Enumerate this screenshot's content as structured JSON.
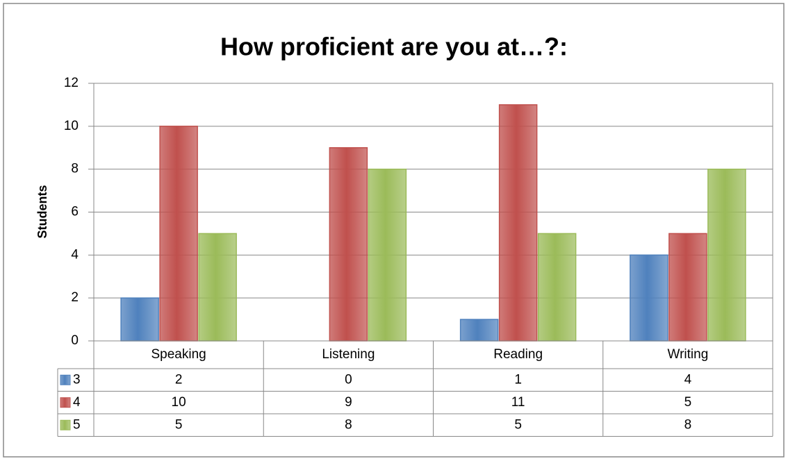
{
  "chart_data": {
    "type": "bar",
    "title": "How proficient are you at…?:",
    "y_label": "Students",
    "categories": [
      "Speaking",
      "Listening",
      "Reading",
      "Writing"
    ],
    "series": [
      {
        "name": "3",
        "color": "#4f81bd",
        "values": [
          2,
          0,
          1,
          4
        ]
      },
      {
        "name": "4",
        "color": "#c0504d",
        "values": [
          10,
          9,
          11,
          5
        ]
      },
      {
        "name": "5",
        "color": "#9bbb59",
        "values": [
          5,
          8,
          5,
          8
        ]
      }
    ],
    "ylim": [
      0,
      12
    ],
    "yticks": [
      0,
      2,
      4,
      6,
      8,
      10,
      12
    ],
    "grid": true,
    "data_table": true
  }
}
